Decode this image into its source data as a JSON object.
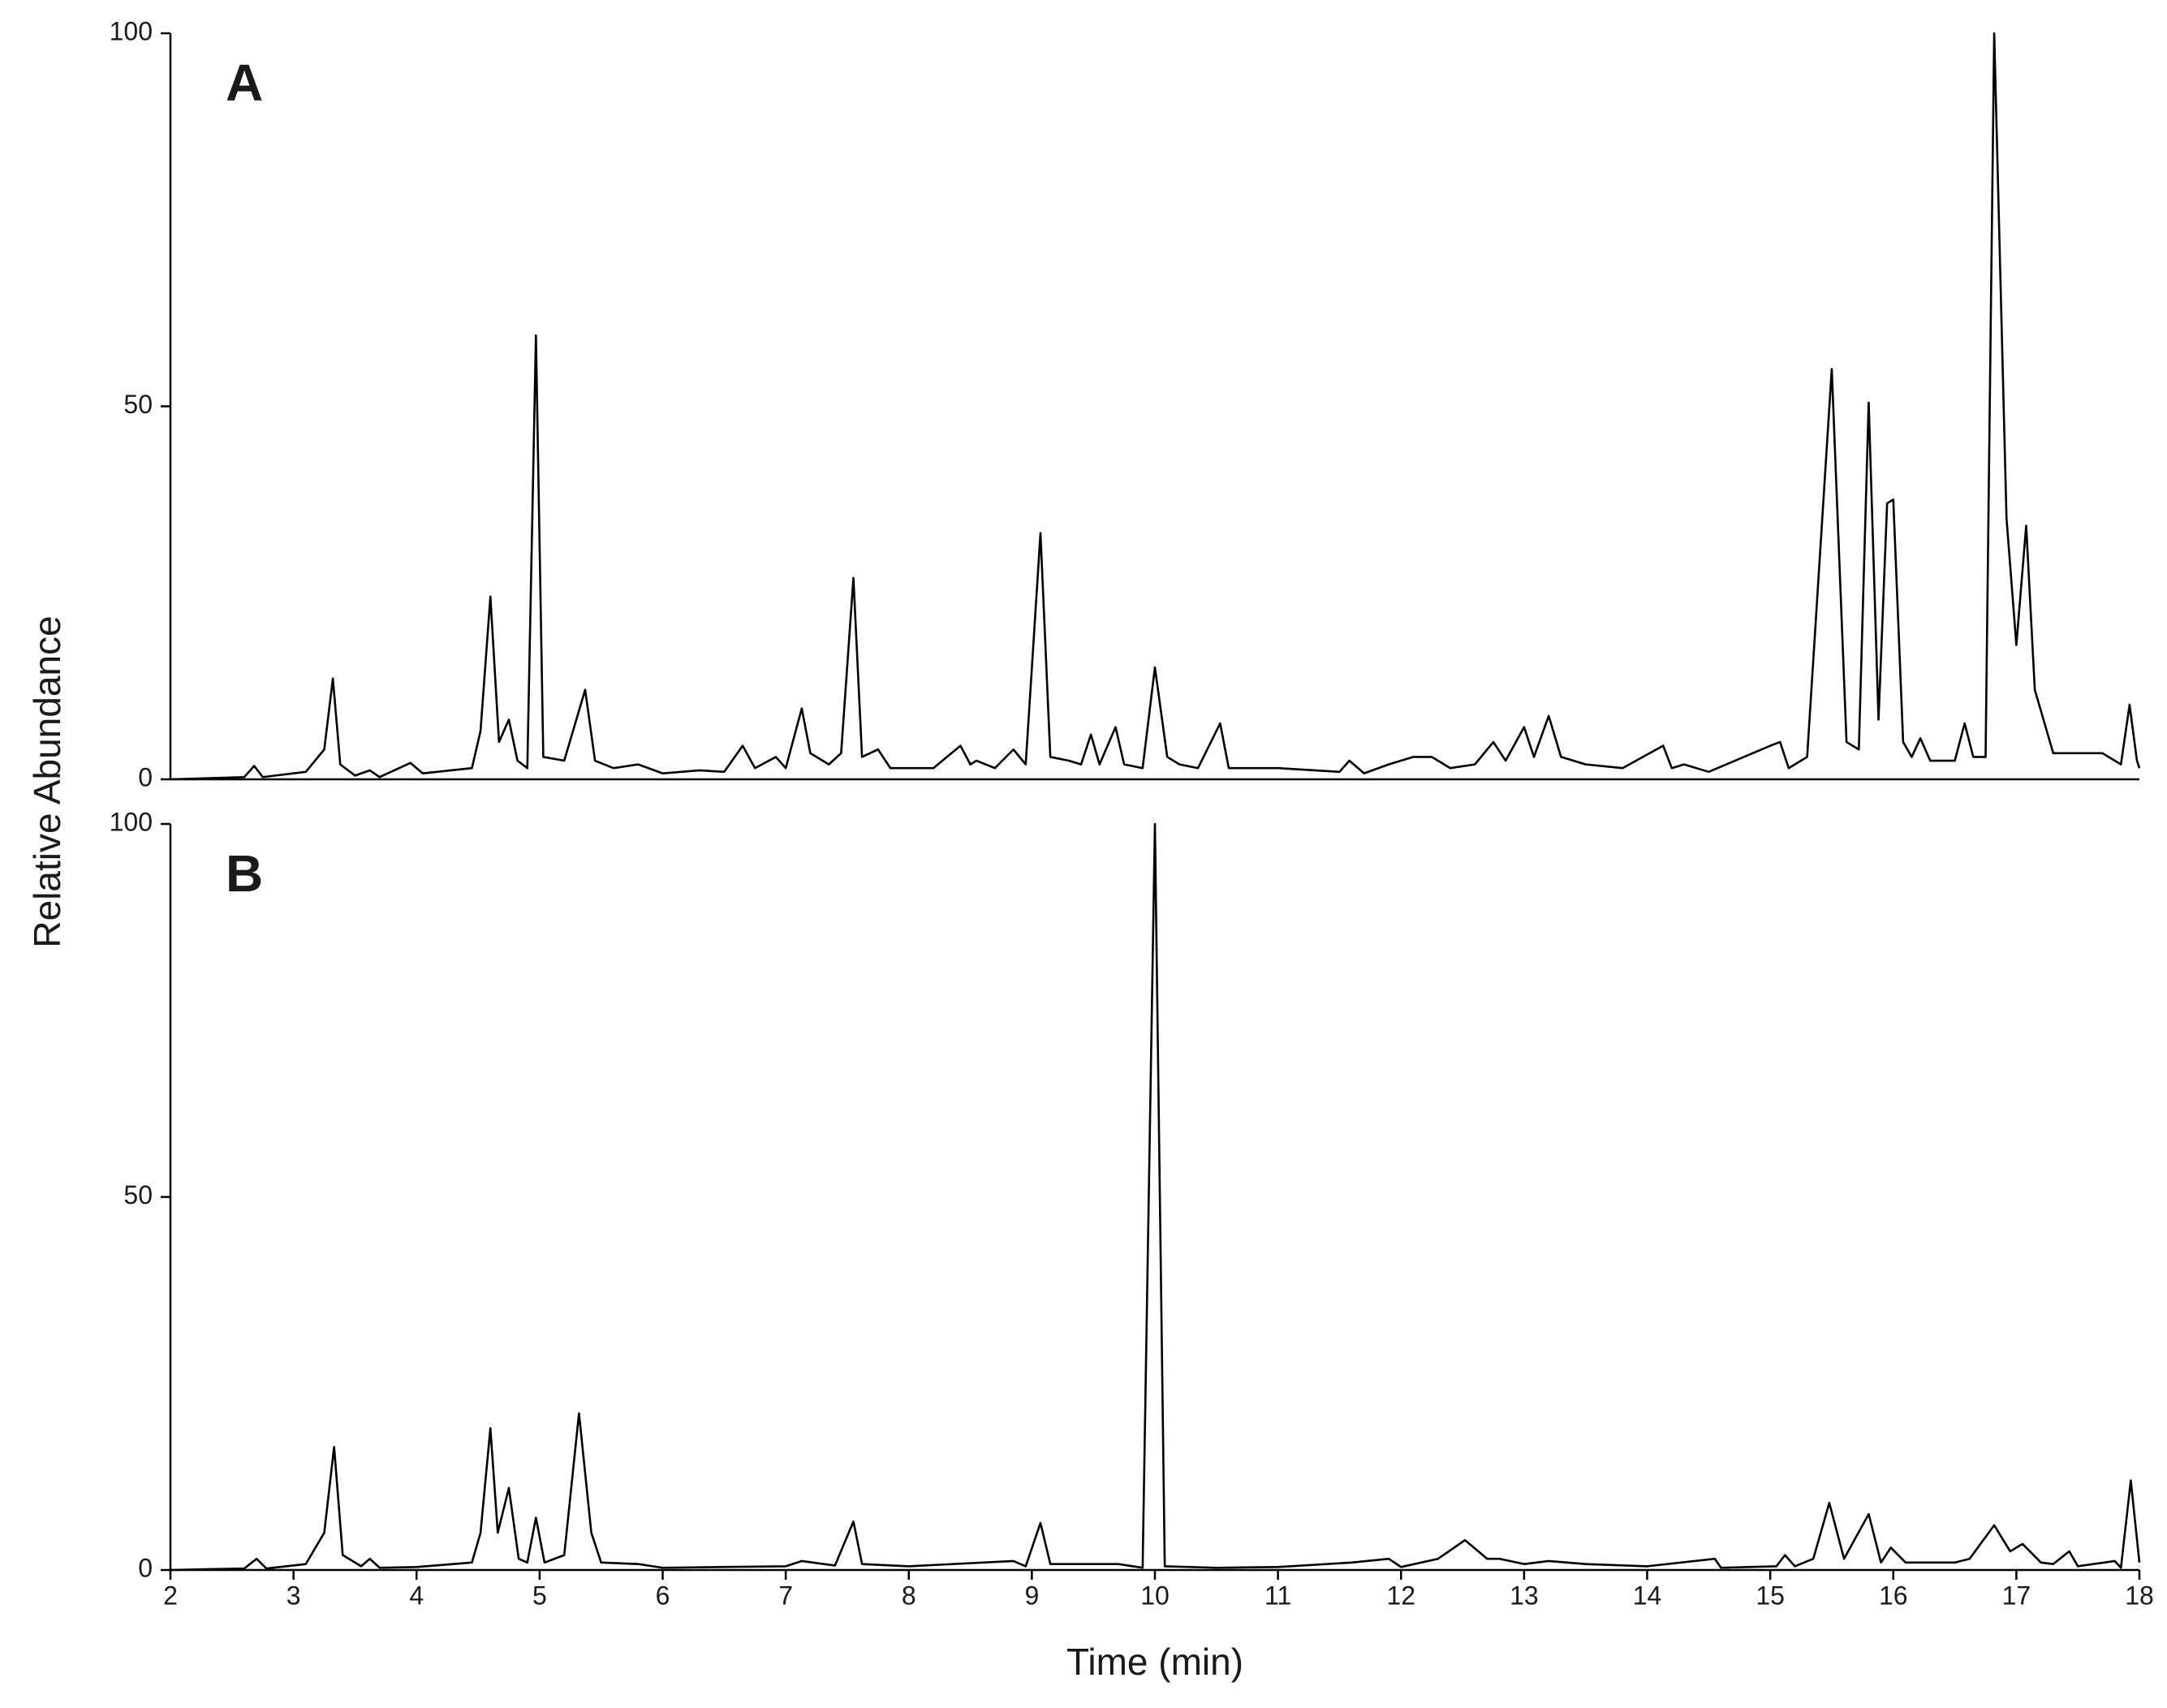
{
  "ylabel": "Relative Abundance",
  "xlabel": "Time (min)",
  "chart_data": [
    {
      "type": "line",
      "title": "A",
      "color": "#000000",
      "xlim": [
        2,
        18
      ],
      "ylim": [
        0,
        100
      ],
      "yticks": [
        0,
        50,
        100
      ],
      "x": [
        2.0,
        2.6,
        2.68,
        2.75,
        3.1,
        3.25,
        3.32,
        3.38,
        3.5,
        3.62,
        3.7,
        3.95,
        4.05,
        4.45,
        4.52,
        4.6,
        4.67,
        4.75,
        4.82,
        4.9,
        4.97,
        5.03,
        5.2,
        5.37,
        5.45,
        5.6,
        5.8,
        6.0,
        6.3,
        6.5,
        6.65,
        6.75,
        6.92,
        7.0,
        7.13,
        7.2,
        7.35,
        7.45,
        7.55,
        7.62,
        7.75,
        7.85,
        8.2,
        8.42,
        8.5,
        8.55,
        8.7,
        8.85,
        8.95,
        9.07,
        9.15,
        9.3,
        9.4,
        9.48,
        9.55,
        9.68,
        9.75,
        9.9,
        10.0,
        10.1,
        10.2,
        10.35,
        10.53,
        10.6,
        11.0,
        11.5,
        11.58,
        11.7,
        11.9,
        12.1,
        12.25,
        12.4,
        12.6,
        12.75,
        12.85,
        13.0,
        13.08,
        13.2,
        13.3,
        13.5,
        13.8,
        14.13,
        14.2,
        14.3,
        14.5,
        15.0,
        15.08,
        15.15,
        15.3,
        15.5,
        15.62,
        15.72,
        15.8,
        15.88,
        15.95,
        16.0,
        16.08,
        16.15,
        16.22,
        16.3,
        16.5,
        16.58,
        16.65,
        16.75,
        16.82,
        16.92,
        17.0,
        17.08,
        17.15,
        17.3,
        17.5,
        17.7,
        17.85,
        17.92,
        17.98,
        18.0
      ],
      "values": [
        0,
        0.3,
        1.8,
        0.3,
        1,
        4,
        13.5,
        2,
        0.5,
        1.2,
        0.3,
        2.2,
        0.8,
        1.5,
        6.5,
        24.5,
        5,
        8,
        2.5,
        1.5,
        59.5,
        3,
        2.5,
        12,
        2.5,
        1.5,
        2,
        0.8,
        1.2,
        1,
        4.5,
        1.5,
        3,
        1.5,
        9.5,
        3.5,
        2,
        3.5,
        27,
        3,
        4,
        1.5,
        1.5,
        4.5,
        2,
        2.5,
        1.5,
        4,
        2,
        33,
        3,
        2.5,
        2,
        6,
        2,
        7,
        2,
        1.5,
        15,
        3,
        2,
        1.5,
        7.5,
        1.5,
        1.5,
        1,
        2.5,
        0.8,
        2,
        3,
        3,
        1.5,
        2,
        5,
        2.5,
        7,
        3,
        8.5,
        3,
        2,
        1.5,
        4.5,
        1.5,
        2,
        1,
        4.5,
        5,
        1.5,
        3,
        55,
        5,
        4,
        50.5,
        8,
        37,
        37.5,
        5,
        3,
        5.5,
        2.5,
        2.5,
        7.5,
        3,
        3,
        100,
        35,
        18,
        34,
        12,
        3.5,
        3.5,
        3.5,
        2,
        10,
        2.5,
        1.5
      ]
    },
    {
      "type": "line",
      "title": "B",
      "color": "#000000",
      "xlim": [
        2,
        18
      ],
      "xticks": [
        2,
        3,
        4,
        5,
        6,
        7,
        8,
        9,
        10,
        11,
        12,
        13,
        14,
        15,
        16,
        17,
        18
      ],
      "ylim": [
        0,
        100
      ],
      "yticks": [
        0,
        50,
        100
      ],
      "x": [
        2.0,
        2.6,
        2.7,
        2.78,
        3.1,
        3.25,
        3.33,
        3.4,
        3.55,
        3.62,
        3.7,
        4.0,
        4.45,
        4.52,
        4.6,
        4.66,
        4.75,
        4.83,
        4.9,
        4.97,
        5.04,
        5.2,
        5.32,
        5.42,
        5.5,
        5.8,
        6.0,
        7.0,
        7.13,
        7.4,
        7.55,
        7.62,
        8.0,
        8.85,
        8.95,
        9.07,
        9.15,
        9.7,
        9.9,
        10.0,
        10.08,
        10.5,
        11.0,
        11.6,
        11.9,
        12.0,
        12.3,
        12.52,
        12.7,
        12.8,
        13.0,
        13.2,
        13.5,
        14.0,
        14.55,
        14.6,
        15.05,
        15.12,
        15.2,
        15.35,
        15.48,
        15.6,
        15.8,
        15.9,
        15.98,
        16.1,
        16.5,
        16.62,
        16.82,
        16.95,
        17.05,
        17.2,
        17.3,
        17.43,
        17.5,
        17.8,
        17.85,
        17.93,
        18.0
      ],
      "values": [
        0,
        0.2,
        1.5,
        0.2,
        0.8,
        5,
        16.5,
        2,
        0.5,
        1.5,
        0.3,
        0.4,
        1,
        5,
        19,
        5,
        11,
        1.5,
        1,
        7,
        1,
        2,
        21,
        5,
        1,
        0.8,
        0.3,
        0.5,
        1.2,
        0.6,
        6.5,
        0.8,
        0.5,
        1.2,
        0.5,
        6.3,
        0.8,
        0.8,
        0.3,
        100,
        0.5,
        0.3,
        0.4,
        1,
        1.5,
        0.4,
        1.5,
        4,
        1.5,
        1.5,
        0.8,
        1.2,
        0.8,
        0.5,
        1.5,
        0.3,
        0.5,
        2,
        0.5,
        1.5,
        9,
        1.5,
        7.5,
        1,
        3,
        1,
        1,
        1.5,
        6,
        2.5,
        3.5,
        1,
        0.8,
        2.5,
        0.5,
        1.2,
        0.3,
        12,
        1
      ]
    }
  ]
}
